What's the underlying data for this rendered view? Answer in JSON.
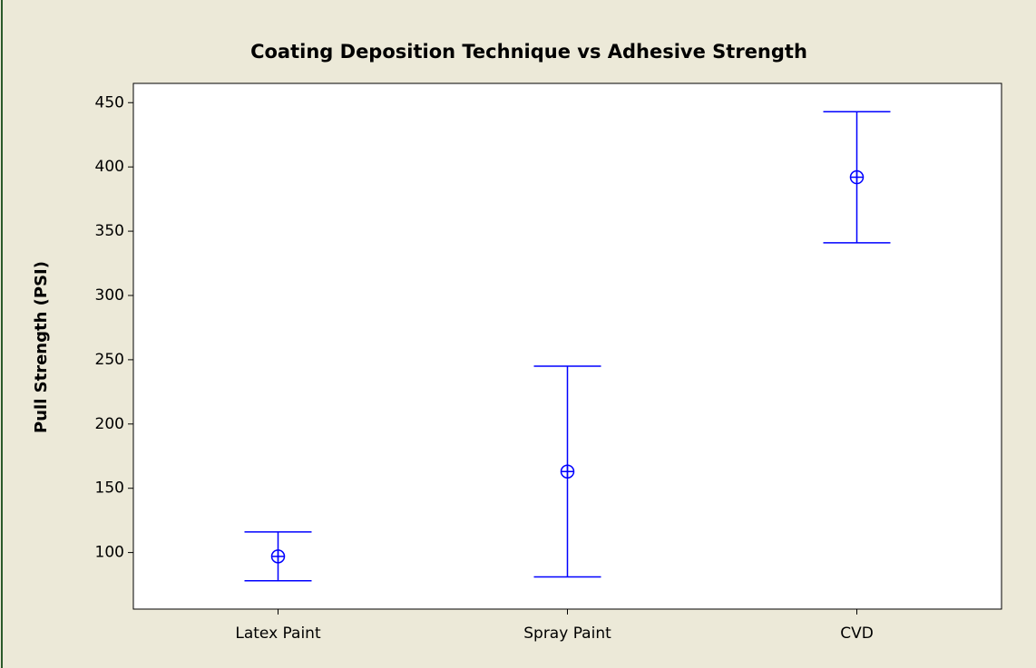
{
  "chart_data": {
    "type": "interval",
    "title": "Coating Deposition Technique vs Adhesive Strength",
    "ylabel": "Pull Strength (PSI)",
    "categories": [
      "Latex Paint",
      "Spray Paint",
      "CVD"
    ],
    "values": [
      97,
      163,
      392
    ],
    "errors": [
      19,
      82,
      51
    ],
    "color": "#0000ff",
    "ylim": [
      56,
      465
    ],
    "yticks": [
      100,
      150,
      200,
      250,
      300,
      350,
      400,
      450
    ],
    "grid": false
  }
}
